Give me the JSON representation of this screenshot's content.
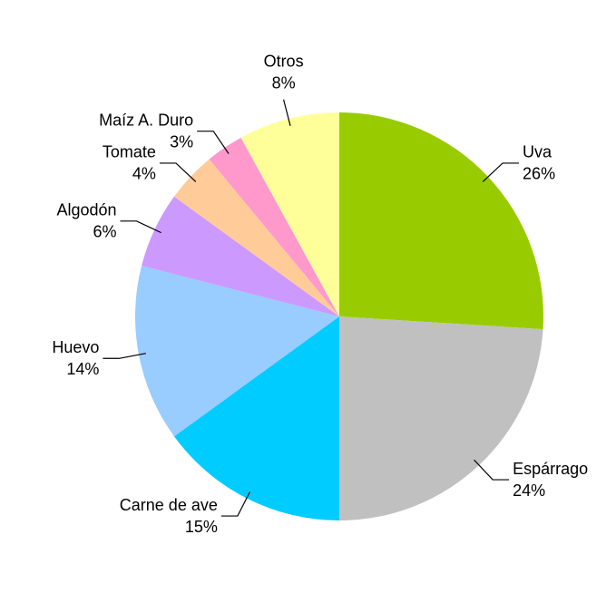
{
  "chart_data": {
    "type": "pie",
    "categories": [
      "Uva",
      "Espárrago",
      "Carne de ave",
      "Huevo",
      "Algodón",
      "Tomate",
      "Maíz A. Duro",
      "Otros"
    ],
    "values": [
      26,
      24,
      15,
      14,
      6,
      4,
      3,
      8
    ],
    "value_labels": [
      "26%",
      "24%",
      "15%",
      "14%",
      "6%",
      "4%",
      "3%",
      "8%"
    ],
    "colors": [
      "#99cc00",
      "#c0c0c0",
      "#00ccff",
      "#99ccff",
      "#cc99ff",
      "#ffcc99",
      "#ff99cc",
      "#ffff99"
    ]
  }
}
